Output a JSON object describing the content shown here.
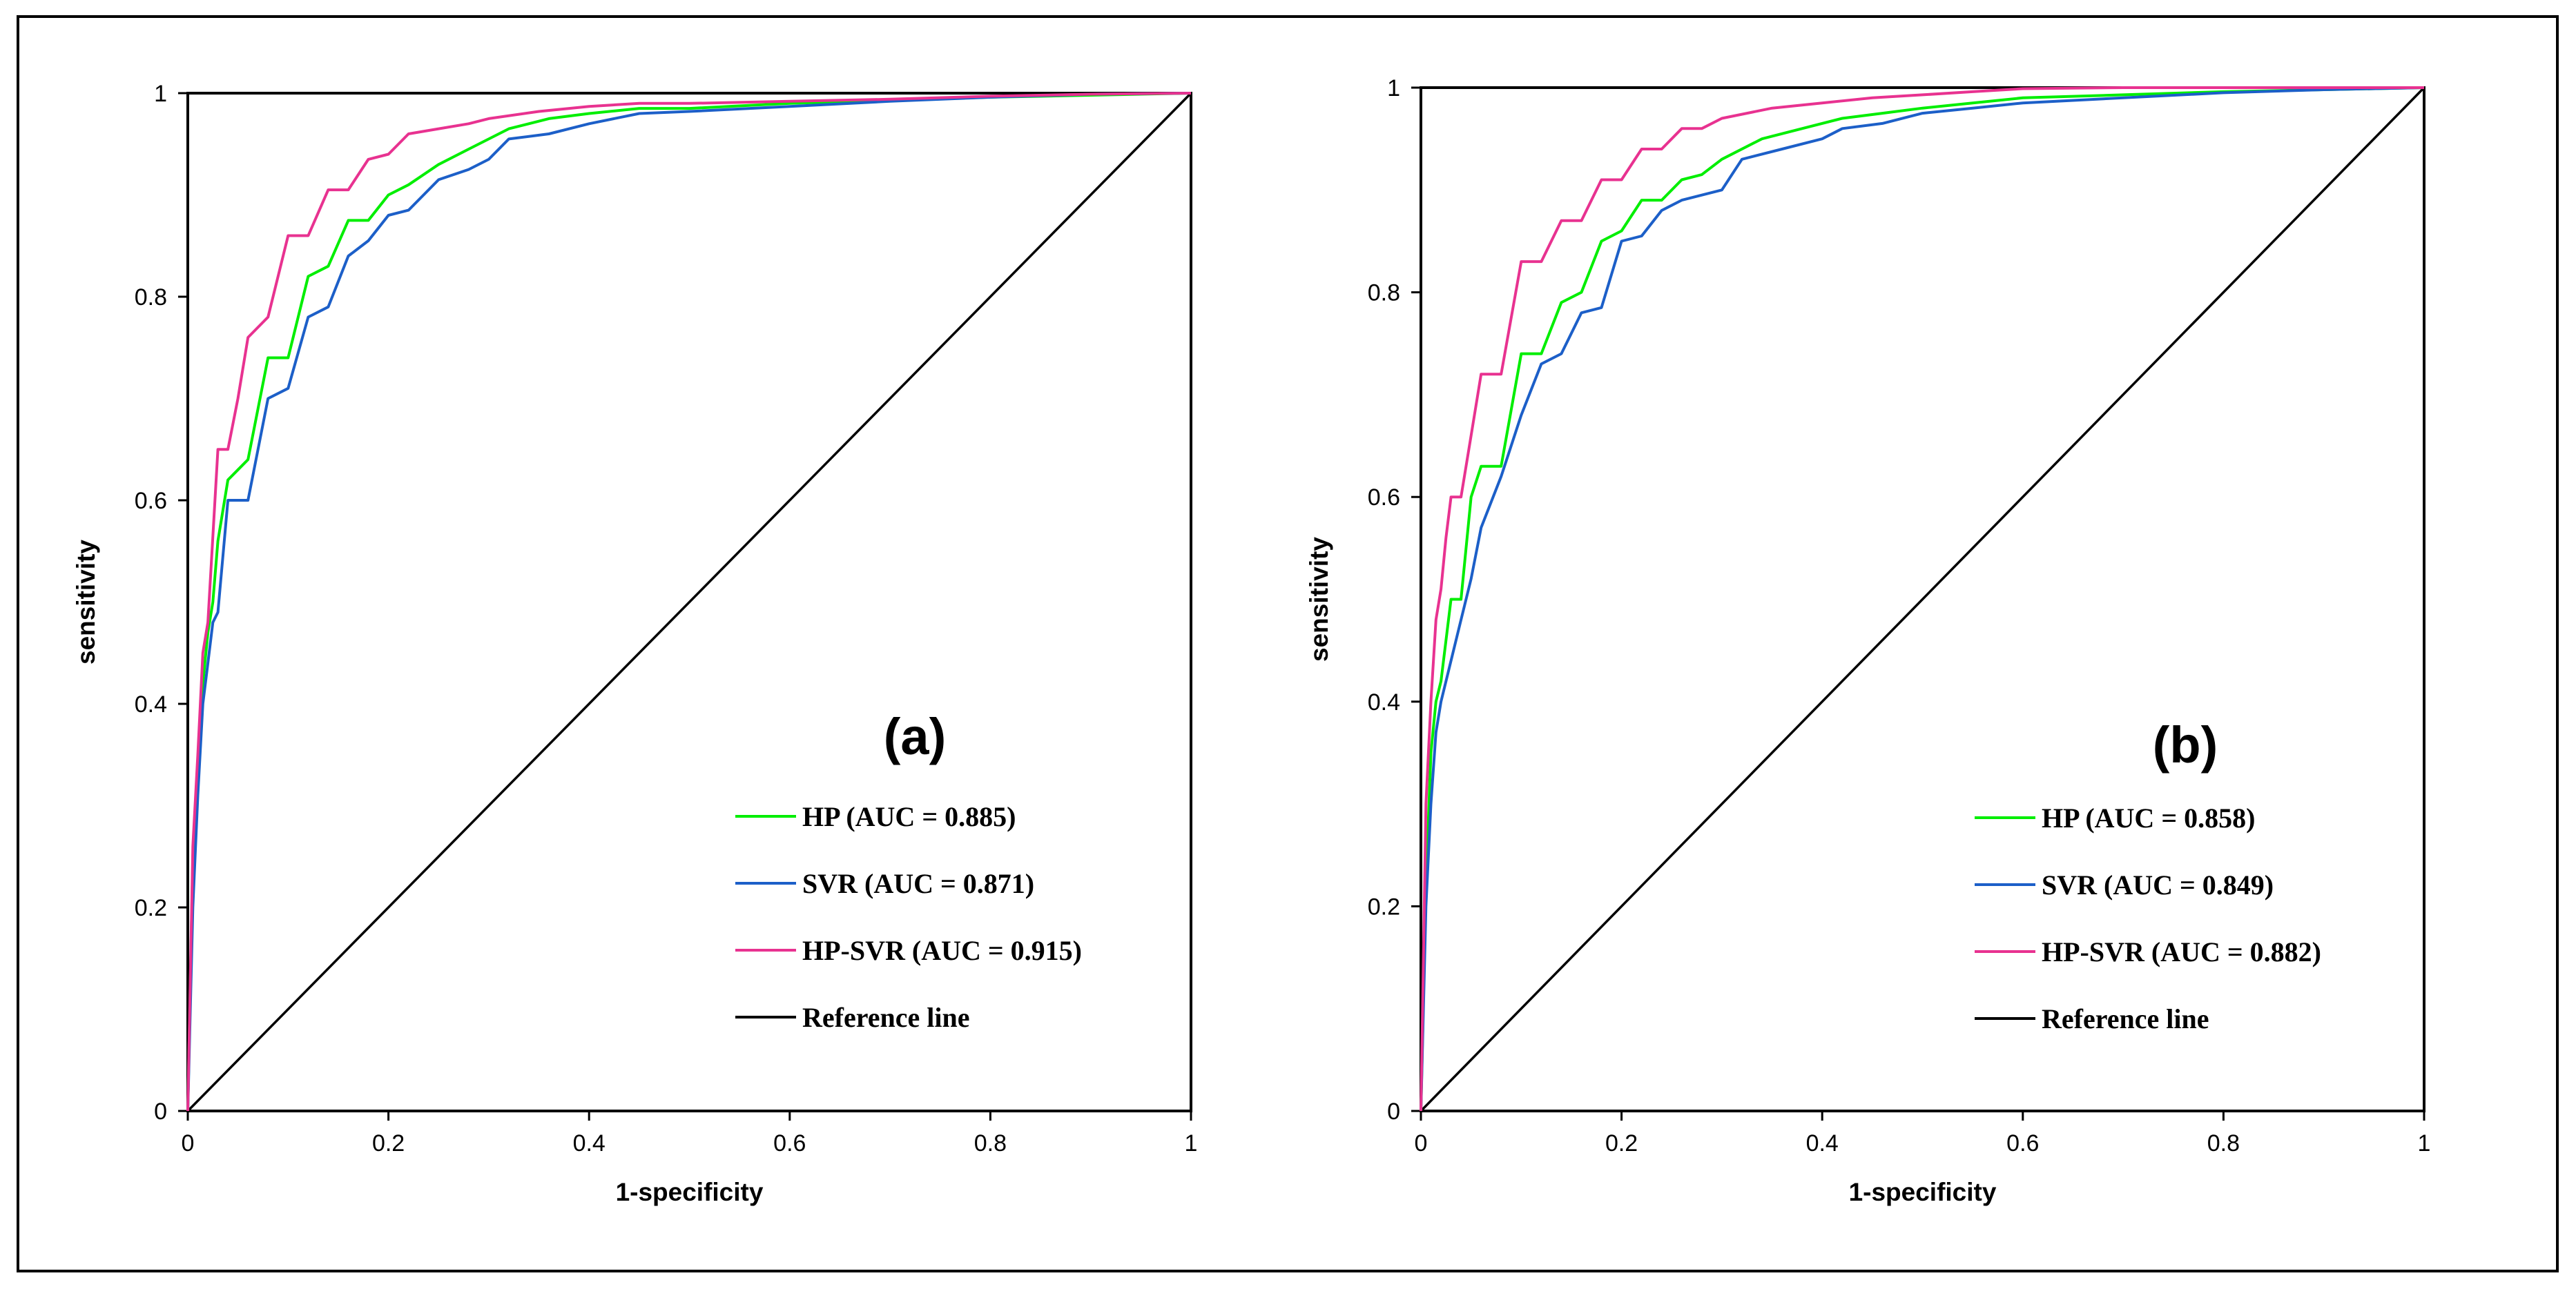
{
  "chart_data": [
    {
      "type": "line",
      "panel_label": "(a)",
      "xlabel": "1-specificity",
      "ylabel": "sensitivity",
      "xlim": [
        0,
        1
      ],
      "ylim": [
        0,
        1
      ],
      "xticks": [
        "0",
        "0.2",
        "0.4",
        "0.6",
        "0.8",
        "1"
      ],
      "yticks": [
        "0",
        "0.2",
        "0.4",
        "0.6",
        "0.8",
        "1"
      ],
      "legend_position": "bottom-right",
      "series": [
        {
          "name": "HP (AUC = 0.885)",
          "color": "#00ee00",
          "x": [
            0,
            0.005,
            0.01,
            0.015,
            0.02,
            0.025,
            0.03,
            0.04,
            0.05,
            0.06,
            0.08,
            0.1,
            0.12,
            0.14,
            0.16,
            0.18,
            0.2,
            0.22,
            0.25,
            0.28,
            0.32,
            0.36,
            0.4,
            0.45,
            0.5,
            0.6,
            0.7,
            0.8,
            0.9,
            1
          ],
          "y": [
            0,
            0.25,
            0.33,
            0.42,
            0.47,
            0.5,
            0.56,
            0.62,
            0.63,
            0.64,
            0.74,
            0.74,
            0.82,
            0.83,
            0.875,
            0.875,
            0.9,
            0.91,
            0.93,
            0.945,
            0.965,
            0.975,
            0.98,
            0.985,
            0.985,
            0.99,
            0.993,
            0.996,
            0.998,
            1
          ]
        },
        {
          "name": "SVR (AUC = 0.871)",
          "color": "#1c5fc8",
          "x": [
            0,
            0.005,
            0.01,
            0.015,
            0.02,
            0.025,
            0.03,
            0.04,
            0.05,
            0.06,
            0.08,
            0.1,
            0.12,
            0.14,
            0.16,
            0.18,
            0.2,
            0.22,
            0.25,
            0.28,
            0.3,
            0.32,
            0.36,
            0.4,
            0.45,
            0.5,
            0.6,
            0.7,
            0.8,
            0.9,
            1
          ],
          "y": [
            0,
            0.2,
            0.31,
            0.4,
            0.44,
            0.48,
            0.49,
            0.6,
            0.6,
            0.6,
            0.7,
            0.71,
            0.78,
            0.79,
            0.84,
            0.855,
            0.88,
            0.885,
            0.915,
            0.925,
            0.935,
            0.955,
            0.96,
            0.97,
            0.98,
            0.982,
            0.987,
            0.992,
            0.996,
            0.999,
            1
          ]
        },
        {
          "name": "HP-SVR (AUC = 0.915)",
          "color": "#e83290",
          "x": [
            0,
            0.005,
            0.01,
            0.015,
            0.02,
            0.03,
            0.04,
            0.05,
            0.06,
            0.08,
            0.1,
            0.12,
            0.14,
            0.16,
            0.18,
            0.2,
            0.22,
            0.25,
            0.28,
            0.3,
            0.35,
            0.4,
            0.45,
            0.5,
            0.6,
            0.7,
            0.8,
            0.9,
            1
          ],
          "y": [
            0,
            0.26,
            0.35,
            0.45,
            0.48,
            0.65,
            0.65,
            0.7,
            0.76,
            0.78,
            0.86,
            0.86,
            0.905,
            0.905,
            0.935,
            0.94,
            0.96,
            0.965,
            0.97,
            0.975,
            0.982,
            0.987,
            0.99,
            0.99,
            0.992,
            0.994,
            0.997,
            0.999,
            1
          ]
        },
        {
          "name": "Reference line",
          "color": "#000000",
          "x": [
            0,
            1
          ],
          "y": [
            0,
            1
          ]
        }
      ]
    },
    {
      "type": "line",
      "panel_label": "(b)",
      "xlabel": "1-specificity",
      "ylabel": "sensitivity",
      "xlim": [
        0,
        1
      ],
      "ylim": [
        0,
        1
      ],
      "xticks": [
        "0",
        "0.2",
        "0.4",
        "0.6",
        "0.8",
        "1"
      ],
      "yticks": [
        "0",
        "0.2",
        "0.4",
        "0.6",
        "0.8",
        "1"
      ],
      "legend_position": "bottom-right",
      "series": [
        {
          "name": "HP (AUC = 0.858)",
          "color": "#00ee00",
          "x": [
            0,
            0.005,
            0.01,
            0.015,
            0.02,
            0.03,
            0.04,
            0.05,
            0.06,
            0.08,
            0.1,
            0.12,
            0.14,
            0.16,
            0.18,
            0.2,
            0.22,
            0.24,
            0.26,
            0.28,
            0.3,
            0.34,
            0.38,
            0.42,
            0.46,
            0.5,
            0.55,
            0.6,
            0.7,
            0.8,
            0.9,
            1
          ],
          "y": [
            0,
            0.22,
            0.35,
            0.4,
            0.42,
            0.5,
            0.5,
            0.6,
            0.63,
            0.63,
            0.74,
            0.74,
            0.79,
            0.8,
            0.85,
            0.86,
            0.89,
            0.89,
            0.91,
            0.915,
            0.93,
            0.95,
            0.96,
            0.97,
            0.975,
            0.98,
            0.985,
            0.99,
            0.993,
            0.996,
            0.998,
            1
          ]
        },
        {
          "name": "SVR (AUC = 0.849)",
          "color": "#1c5fc8",
          "x": [
            0,
            0.005,
            0.01,
            0.015,
            0.02,
            0.03,
            0.04,
            0.05,
            0.06,
            0.08,
            0.1,
            0.12,
            0.14,
            0.16,
            0.18,
            0.2,
            0.22,
            0.24,
            0.26,
            0.28,
            0.3,
            0.32,
            0.36,
            0.4,
            0.42,
            0.46,
            0.5,
            0.55,
            0.6,
            0.7,
            0.8,
            0.9,
            1
          ],
          "y": [
            0,
            0.2,
            0.3,
            0.37,
            0.4,
            0.44,
            0.48,
            0.52,
            0.57,
            0.62,
            0.68,
            0.73,
            0.74,
            0.78,
            0.785,
            0.85,
            0.855,
            0.88,
            0.89,
            0.895,
            0.9,
            0.93,
            0.94,
            0.95,
            0.96,
            0.965,
            0.975,
            0.98,
            0.985,
            0.99,
            0.995,
            0.998,
            1
          ]
        },
        {
          "name": "HP-SVR (AUC = 0.882)",
          "color": "#e83290",
          "x": [
            0,
            0.005,
            0.01,
            0.015,
            0.02,
            0.025,
            0.03,
            0.04,
            0.05,
            0.06,
            0.08,
            0.1,
            0.12,
            0.14,
            0.16,
            0.18,
            0.2,
            0.22,
            0.24,
            0.26,
            0.28,
            0.3,
            0.35,
            0.4,
            0.45,
            0.5,
            0.55,
            0.6,
            0.7,
            0.8,
            0.9,
            1
          ],
          "y": [
            0,
            0.3,
            0.4,
            0.48,
            0.51,
            0.56,
            0.6,
            0.6,
            0.66,
            0.72,
            0.72,
            0.83,
            0.83,
            0.87,
            0.87,
            0.91,
            0.91,
            0.94,
            0.94,
            0.96,
            0.96,
            0.97,
            0.98,
            0.985,
            0.99,
            0.993,
            0.996,
            0.999,
            1,
            1,
            1,
            1
          ]
        },
        {
          "name": "Reference line",
          "color": "#000000",
          "x": [
            0,
            1
          ],
          "y": [
            0,
            1
          ]
        }
      ]
    }
  ]
}
